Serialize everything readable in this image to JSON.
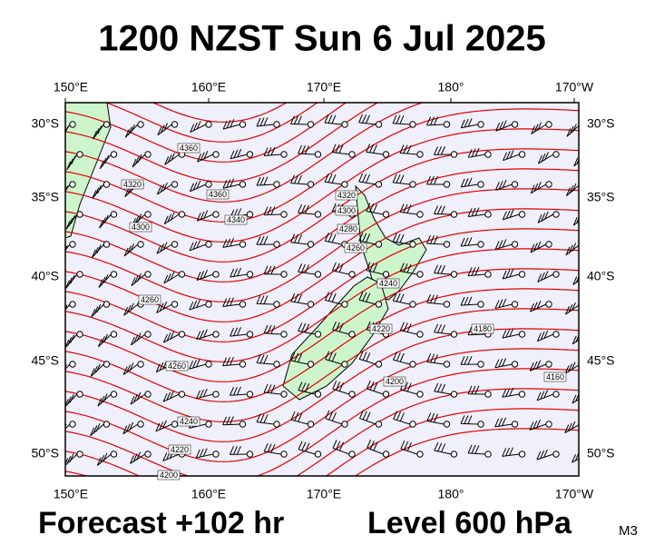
{
  "title": "1200 NZST Sun 6 Jul 2025",
  "footer": {
    "forecast": "Forecast +102 hr",
    "level": "Level 600 hPa",
    "model": "M3"
  },
  "longitude_labels": [
    "150°E",
    "160°E",
    "170°E",
    "180°",
    "170°W"
  ],
  "latitude_labels": [
    "30°S",
    "35°S",
    "40°S",
    "45°S",
    "50°S"
  ],
  "contour_labels": [
    "4360",
    "4320",
    "4360",
    "4340",
    "4300",
    "4260",
    "4320",
    "4300",
    "4280",
    "4260",
    "4240",
    "4220",
    "4180",
    "4160",
    "4200",
    "4260",
    "4240",
    "4220",
    "4200"
  ]
}
